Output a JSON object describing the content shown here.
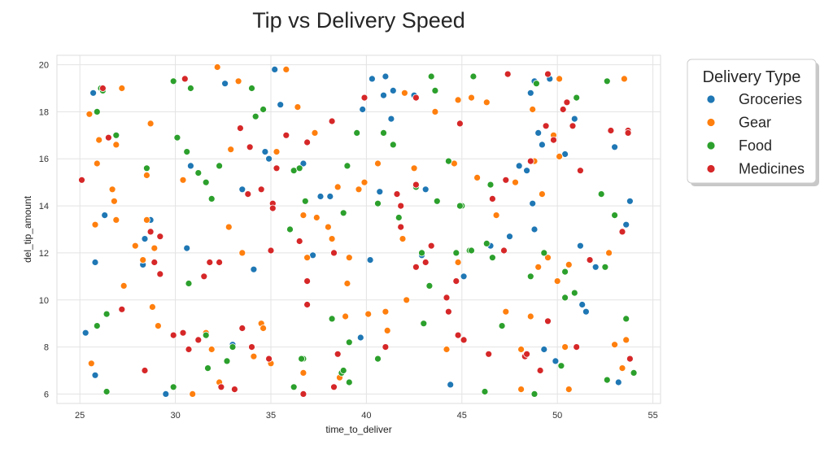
{
  "chart_data": {
    "type": "scatter",
    "title": "Tip vs Delivery Speed",
    "xlabel": "time_to_deliver",
    "ylabel": "del_tip_amount",
    "xlim": [
      23.8,
      55.4
    ],
    "ylim": [
      5.6,
      20.4
    ],
    "xticks": [
      "25",
      "30",
      "35",
      "40",
      "45",
      "50",
      "55"
    ],
    "yticks": [
      "6",
      "8",
      "10",
      "12",
      "14",
      "16",
      "18",
      "20"
    ],
    "xtick_values": [
      25,
      30,
      35,
      40,
      45,
      50,
      55
    ],
    "ytick_values": [
      6,
      8,
      10,
      12,
      14,
      16,
      18,
      20
    ],
    "grid": true,
    "legend": {
      "title": "Delivery Type",
      "placement": "outside-top-right"
    },
    "series": [
      {
        "name": "Groceries",
        "color": "#1f77b4",
        "points": [
          [
            25.3,
            8.6
          ],
          [
            25.7,
            18.8
          ],
          [
            25.8,
            11.6
          ],
          [
            25.8,
            6.8
          ],
          [
            26.3,
            13.6
          ],
          [
            28.3,
            11.5
          ],
          [
            28.4,
            12.6
          ],
          [
            28.7,
            13.4
          ],
          [
            29.5,
            6.0
          ],
          [
            30.6,
            12.2
          ],
          [
            30.8,
            15.7
          ],
          [
            32.6,
            19.2
          ],
          [
            33.0,
            8.1
          ],
          [
            33.5,
            14.7
          ],
          [
            34.1,
            11.3
          ],
          [
            34.7,
            16.3
          ],
          [
            34.9,
            16.0
          ],
          [
            35.2,
            19.8
          ],
          [
            35.5,
            18.3
          ],
          [
            36.7,
            15.8
          ],
          [
            37.2,
            11.9
          ],
          [
            37.6,
            14.4
          ],
          [
            38.1,
            14.4
          ],
          [
            39.7,
            8.4
          ],
          [
            39.8,
            18.1
          ],
          [
            40.2,
            11.7
          ],
          [
            40.3,
            19.4
          ],
          [
            40.7,
            14.6
          ],
          [
            40.9,
            18.7
          ],
          [
            41.0,
            19.5
          ],
          [
            41.3,
            17.7
          ],
          [
            41.4,
            18.9
          ],
          [
            42.5,
            18.7
          ],
          [
            42.9,
            11.9
          ],
          [
            43.1,
            14.7
          ],
          [
            44.4,
            6.4
          ],
          [
            45.1,
            11.0
          ],
          [
            46.5,
            12.3
          ],
          [
            47.5,
            12.7
          ],
          [
            48.0,
            15.7
          ],
          [
            48.6,
            18.8
          ],
          [
            48.7,
            14.1
          ],
          [
            48.8,
            13.0
          ],
          [
            49.0,
            17.1
          ],
          [
            49.2,
            16.6
          ],
          [
            49.3,
            7.9
          ],
          [
            49.6,
            19.4
          ],
          [
            49.9,
            7.4
          ],
          [
            50.4,
            16.2
          ],
          [
            50.9,
            17.7
          ],
          [
            51.2,
            12.3
          ],
          [
            51.3,
            9.8
          ],
          [
            51.5,
            9.5
          ],
          [
            52.0,
            11.4
          ],
          [
            53.0,
            16.5
          ],
          [
            53.2,
            6.5
          ],
          [
            53.6,
            13.2
          ],
          [
            53.8,
            14.2
          ],
          [
            48.8,
            19.3
          ],
          [
            48.4,
            15.5
          ]
        ]
      },
      {
        "name": "Gear",
        "color": "#ff7f0e",
        "points": [
          [
            25.5,
            17.9
          ],
          [
            25.6,
            7.3
          ],
          [
            25.8,
            13.2
          ],
          [
            25.9,
            15.8
          ],
          [
            26.0,
            16.8
          ],
          [
            26.7,
            14.7
          ],
          [
            26.8,
            14.2
          ],
          [
            26.9,
            16.6
          ],
          [
            26.9,
            13.4
          ],
          [
            27.2,
            19.0
          ],
          [
            27.3,
            10.6
          ],
          [
            27.9,
            12.3
          ],
          [
            28.3,
            11.7
          ],
          [
            28.5,
            15.3
          ],
          [
            28.5,
            13.4
          ],
          [
            28.7,
            17.5
          ],
          [
            28.8,
            9.7
          ],
          [
            28.9,
            12.2
          ],
          [
            29.1,
            8.9
          ],
          [
            30.4,
            15.1
          ],
          [
            30.9,
            6.0
          ],
          [
            31.6,
            8.6
          ],
          [
            31.9,
            7.9
          ],
          [
            32.2,
            19.9
          ],
          [
            32.3,
            6.5
          ],
          [
            32.8,
            13.1
          ],
          [
            32.9,
            16.4
          ],
          [
            33.3,
            19.3
          ],
          [
            33.5,
            12.0
          ],
          [
            34.1,
            7.6
          ],
          [
            34.5,
            9.0
          ],
          [
            34.6,
            8.8
          ],
          [
            35.0,
            7.3
          ],
          [
            35.3,
            16.3
          ],
          [
            35.8,
            19.8
          ],
          [
            36.4,
            18.2
          ],
          [
            36.7,
            13.6
          ],
          [
            36.7,
            6.9
          ],
          [
            36.9,
            11.8
          ],
          [
            37.3,
            17.1
          ],
          [
            37.4,
            13.5
          ],
          [
            38.0,
            13.1
          ],
          [
            38.2,
            12.6
          ],
          [
            38.5,
            14.8
          ],
          [
            38.6,
            6.7
          ],
          [
            38.9,
            9.3
          ],
          [
            39.0,
            10.7
          ],
          [
            39.1,
            11.8
          ],
          [
            39.6,
            14.7
          ],
          [
            39.9,
            15.0
          ],
          [
            40.1,
            9.4
          ],
          [
            40.6,
            15.8
          ],
          [
            41.0,
            9.5
          ],
          [
            41.1,
            8.7
          ],
          [
            41.9,
            12.6
          ],
          [
            42.0,
            18.8
          ],
          [
            42.1,
            10.0
          ],
          [
            42.5,
            15.6
          ],
          [
            43.6,
            18.0
          ],
          [
            44.2,
            7.9
          ],
          [
            44.6,
            15.8
          ],
          [
            44.8,
            11.6
          ],
          [
            44.8,
            18.5
          ],
          [
            45.5,
            18.6
          ],
          [
            45.8,
            15.2
          ],
          [
            46.3,
            18.4
          ],
          [
            46.8,
            13.6
          ],
          [
            47.3,
            9.5
          ],
          [
            47.8,
            15.0
          ],
          [
            48.1,
            7.9
          ],
          [
            48.1,
            6.2
          ],
          [
            48.6,
            9.3
          ],
          [
            48.7,
            18.1
          ],
          [
            48.8,
            15.9
          ],
          [
            49.0,
            11.4
          ],
          [
            49.2,
            14.5
          ],
          [
            49.5,
            11.8
          ],
          [
            49.8,
            17.0
          ],
          [
            50.0,
            10.8
          ],
          [
            50.1,
            16.1
          ],
          [
            50.1,
            19.4
          ],
          [
            50.4,
            8.0
          ],
          [
            50.6,
            11.5
          ],
          [
            50.6,
            6.2
          ],
          [
            52.7,
            12.0
          ],
          [
            53.0,
            8.1
          ],
          [
            53.4,
            7.1
          ],
          [
            53.5,
            19.4
          ],
          [
            53.6,
            8.3
          ],
          [
            26.9,
            17.0
          ]
        ]
      },
      {
        "name": "Food",
        "color": "#2ca02c",
        "points": [
          [
            25.9,
            18.0
          ],
          [
            25.9,
            8.9
          ],
          [
            26.1,
            19.0
          ],
          [
            26.2,
            18.9
          ],
          [
            26.4,
            9.4
          ],
          [
            26.4,
            6.1
          ],
          [
            26.9,
            17.0
          ],
          [
            28.5,
            15.6
          ],
          [
            29.9,
            19.3
          ],
          [
            29.9,
            6.3
          ],
          [
            30.1,
            16.9
          ],
          [
            30.6,
            16.3
          ],
          [
            30.7,
            10.7
          ],
          [
            30.8,
            19.0
          ],
          [
            31.2,
            15.4
          ],
          [
            31.6,
            8.5
          ],
          [
            31.6,
            15.0
          ],
          [
            31.7,
            7.1
          ],
          [
            31.9,
            14.3
          ],
          [
            32.3,
            15.7
          ],
          [
            32.7,
            7.4
          ],
          [
            33.0,
            8.0
          ],
          [
            34.0,
            19.0
          ],
          [
            34.2,
            17.8
          ],
          [
            34.6,
            18.1
          ],
          [
            36.0,
            13.0
          ],
          [
            36.2,
            6.3
          ],
          [
            36.2,
            15.5
          ],
          [
            36.5,
            15.6
          ],
          [
            36.7,
            7.5
          ],
          [
            36.8,
            14.2
          ],
          [
            38.2,
            9.2
          ],
          [
            38.7,
            6.9
          ],
          [
            38.8,
            7.0
          ],
          [
            38.8,
            13.7
          ],
          [
            39.0,
            15.7
          ],
          [
            39.1,
            6.5
          ],
          [
            39.1,
            8.2
          ],
          [
            39.5,
            17.1
          ],
          [
            40.6,
            14.1
          ],
          [
            40.6,
            7.5
          ],
          [
            40.9,
            17.1
          ],
          [
            41.4,
            16.6
          ],
          [
            41.7,
            13.5
          ],
          [
            42.6,
            14.8
          ],
          [
            43.0,
            9.0
          ],
          [
            43.3,
            10.6
          ],
          [
            43.4,
            19.5
          ],
          [
            43.6,
            18.9
          ],
          [
            43.7,
            14.2
          ],
          [
            44.3,
            15.9
          ],
          [
            44.7,
            12.0
          ],
          [
            45.0,
            14.0
          ],
          [
            45.4,
            12.1
          ],
          [
            45.6,
            19.5
          ],
          [
            46.2,
            6.1
          ],
          [
            46.3,
            12.4
          ],
          [
            46.5,
            14.9
          ],
          [
            46.6,
            11.8
          ],
          [
            47.1,
            8.9
          ],
          [
            48.6,
            11.0
          ],
          [
            48.9,
            19.2
          ],
          [
            49.3,
            12.0
          ],
          [
            50.2,
            7.2
          ],
          [
            50.4,
            11.2
          ],
          [
            50.4,
            10.1
          ],
          [
            50.9,
            10.3
          ],
          [
            51.0,
            18.6
          ],
          [
            52.3,
            14.5
          ],
          [
            52.5,
            11.4
          ],
          [
            52.6,
            6.6
          ],
          [
            52.6,
            19.3
          ],
          [
            53.0,
            13.6
          ],
          [
            53.6,
            9.2
          ],
          [
            54.0,
            6.9
          ],
          [
            48.8,
            6.0
          ],
          [
            45.5,
            12.1
          ],
          [
            44.9,
            14.0
          ],
          [
            36.6,
            7.5
          ],
          [
            42.9,
            12.0
          ]
        ]
      },
      {
        "name": "Medicines",
        "color": "#d62728",
        "points": [
          [
            25.1,
            15.1
          ],
          [
            26.2,
            19.0
          ],
          [
            26.5,
            16.9
          ],
          [
            27.2,
            9.6
          ],
          [
            28.4,
            7.0
          ],
          [
            28.7,
            12.9
          ],
          [
            28.9,
            11.6
          ],
          [
            29.2,
            12.7
          ],
          [
            29.2,
            11.1
          ],
          [
            29.9,
            8.5
          ],
          [
            30.4,
            8.6
          ],
          [
            30.5,
            19.4
          ],
          [
            30.7,
            7.9
          ],
          [
            31.2,
            8.3
          ],
          [
            31.5,
            11.0
          ],
          [
            31.8,
            11.6
          ],
          [
            32.3,
            11.6
          ],
          [
            32.4,
            6.3
          ],
          [
            33.1,
            6.2
          ],
          [
            33.5,
            8.8
          ],
          [
            33.4,
            17.3
          ],
          [
            33.8,
            14.5
          ],
          [
            33.9,
            16.5
          ],
          [
            34.0,
            8.0
          ],
          [
            34.5,
            14.7
          ],
          [
            34.9,
            7.5
          ],
          [
            35.0,
            12.1
          ],
          [
            35.1,
            14.1
          ],
          [
            35.1,
            13.9
          ],
          [
            35.3,
            15.6
          ],
          [
            35.8,
            17.0
          ],
          [
            36.5,
            12.5
          ],
          [
            36.7,
            6.0
          ],
          [
            36.9,
            10.8
          ],
          [
            36.9,
            9.8
          ],
          [
            36.9,
            16.7
          ],
          [
            38.2,
            17.6
          ],
          [
            38.5,
            7.7
          ],
          [
            38.3,
            12.0
          ],
          [
            38.3,
            6.3
          ],
          [
            39.9,
            18.6
          ],
          [
            41.0,
            8.0
          ],
          [
            41.6,
            14.5
          ],
          [
            41.8,
            13.1
          ],
          [
            41.8,
            14.0
          ],
          [
            42.6,
            11.4
          ],
          [
            42.6,
            18.6
          ],
          [
            42.6,
            14.9
          ],
          [
            43.1,
            11.6
          ],
          [
            43.4,
            12.3
          ],
          [
            44.2,
            10.1
          ],
          [
            44.3,
            9.5
          ],
          [
            44.7,
            10.8
          ],
          [
            44.8,
            8.5
          ],
          [
            44.9,
            17.5
          ],
          [
            45.1,
            8.3
          ],
          [
            46.4,
            7.7
          ],
          [
            46.6,
            14.3
          ],
          [
            47.2,
            12.1
          ],
          [
            47.3,
            15.1
          ],
          [
            47.4,
            19.6
          ],
          [
            48.3,
            7.6
          ],
          [
            48.6,
            15.9
          ],
          [
            49.1,
            7.0
          ],
          [
            49.4,
            17.4
          ],
          [
            49.5,
            9.1
          ],
          [
            49.5,
            19.6
          ],
          [
            49.8,
            16.8
          ],
          [
            50.3,
            18.1
          ],
          [
            50.5,
            18.4
          ],
          [
            50.8,
            17.4
          ],
          [
            51.0,
            8.0
          ],
          [
            51.2,
            15.5
          ],
          [
            51.7,
            11.7
          ],
          [
            52.8,
            17.2
          ],
          [
            53.4,
            12.9
          ],
          [
            53.7,
            17.2
          ],
          [
            53.7,
            17.1
          ],
          [
            53.8,
            7.5
          ],
          [
            48.4,
            7.7
          ]
        ]
      }
    ]
  }
}
